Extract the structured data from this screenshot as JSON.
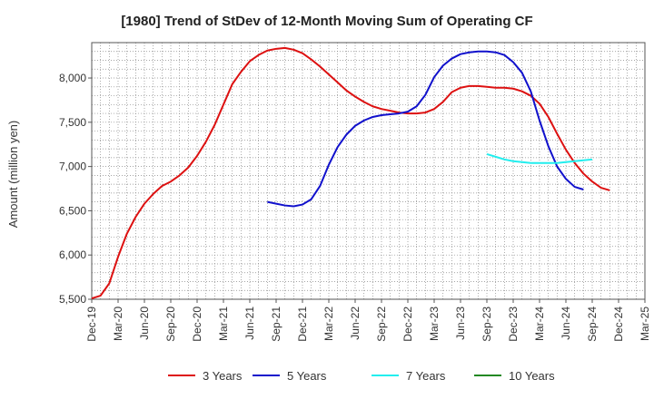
{
  "chart_data": {
    "type": "line",
    "title": "[1980]  Trend of StDev of 12-Month Moving Sum of Operating CF",
    "ylabel": "Amount (million yen)",
    "xlabel": "",
    "ylim": [
      5500,
      8400
    ],
    "yticks": [
      5500,
      6000,
      6500,
      7000,
      7500,
      8000
    ],
    "ytick_labels": [
      "5,500",
      "6,000",
      "6,500",
      "7,000",
      "7,500",
      "8,000"
    ],
    "x_start": "2019-12",
    "x_end": "2025-03",
    "xtick_labels": [
      "Dec-19",
      "Mar-20",
      "Jun-20",
      "Sep-20",
      "Dec-20",
      "Mar-21",
      "Jun-21",
      "Sep-21",
      "Dec-21",
      "Mar-22",
      "Jun-22",
      "Sep-22",
      "Dec-22",
      "Mar-23",
      "Jun-23",
      "Sep-23",
      "Dec-23",
      "Mar-24",
      "Jun-24",
      "Sep-24",
      "Dec-24",
      "Mar-25"
    ],
    "grid": true,
    "legend_position": "bottom",
    "series": [
      {
        "name": "3 Years",
        "color": "#dd1111",
        "start": "2019-12",
        "values": [
          5510,
          5540,
          5680,
          5980,
          6240,
          6430,
          6580,
          6690,
          6780,
          6830,
          6900,
          6990,
          7120,
          7280,
          7470,
          7700,
          7930,
          8070,
          8190,
          8260,
          8310,
          8330,
          8340,
          8320,
          8280,
          8210,
          8130,
          8040,
          7950,
          7860,
          7790,
          7730,
          7680,
          7650,
          7630,
          7610,
          7600,
          7600,
          7610,
          7650,
          7730,
          7840,
          7890,
          7910,
          7910,
          7900,
          7890,
          7890,
          7880,
          7850,
          7800,
          7710,
          7560,
          7370,
          7190,
          7040,
          6920,
          6830,
          6760,
          6730
        ]
      },
      {
        "name": "5 Years",
        "color": "#1111cc",
        "start": "2021-08",
        "values": [
          6600,
          6580,
          6560,
          6550,
          6570,
          6630,
          6780,
          7020,
          7220,
          7360,
          7460,
          7520,
          7560,
          7580,
          7590,
          7600,
          7620,
          7680,
          7810,
          8010,
          8140,
          8220,
          8270,
          8290,
          8300,
          8300,
          8290,
          8260,
          8180,
          8060,
          7850,
          7520,
          7230,
          7000,
          6860,
          6770,
          6740
        ]
      },
      {
        "name": "7 Years",
        "color": "#22eeee",
        "start": "2023-09",
        "values": [
          7140,
          7110,
          7080,
          7060,
          7050,
          7040,
          7040,
          7040,
          7040,
          7050,
          7060,
          7070,
          7080
        ]
      },
      {
        "name": "10 Years",
        "color": "#228822",
        "start": "2019-12",
        "values": []
      }
    ]
  }
}
